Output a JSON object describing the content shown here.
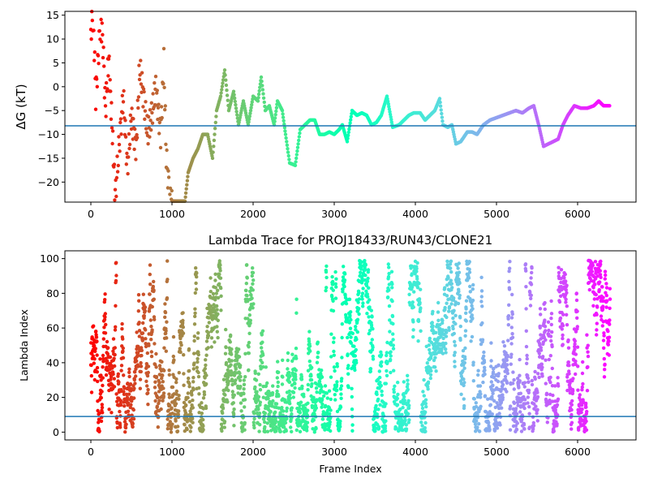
{
  "chart_data": [
    {
      "type": "scatter",
      "title": "",
      "ylabel": "ΔG (kT)",
      "xlabel": "",
      "xlim": [
        -320,
        6720
      ],
      "ylim": [
        -24.2,
        15.8
      ],
      "xticks": [
        0,
        1000,
        2000,
        3000,
        4000,
        5000,
        6000
      ],
      "yticks": [
        -20,
        -15,
        -10,
        -5,
        0,
        5,
        10,
        15
      ],
      "grid": false,
      "colormap": "rainbow (colored by frame index)",
      "hline": {
        "y": -8.2,
        "color": "#1f77b4"
      },
      "trace_points": [
        [
          0,
          12
        ],
        [
          30,
          15
        ],
        [
          60,
          -2
        ],
        [
          90,
          6
        ],
        [
          120,
          14.5
        ],
        [
          150,
          9
        ],
        [
          180,
          -5
        ],
        [
          220,
          6
        ],
        [
          260,
          -8
        ],
        [
          300,
          -23
        ],
        [
          350,
          -12
        ],
        [
          400,
          -2
        ],
        [
          450,
          -17
        ],
        [
          500,
          -6
        ],
        [
          560,
          -13
        ],
        [
          600,
          4
        ],
        [
          650,
          -2
        ],
        [
          700,
          -10
        ],
        [
          760,
          -5
        ],
        [
          800,
          0
        ],
        [
          860,
          -10
        ],
        [
          900,
          5
        ],
        [
          930,
          -15
        ],
        [
          980,
          -24
        ],
        [
          1050,
          -24
        ],
        [
          1100,
          -24
        ],
        [
          1160,
          -24
        ],
        [
          1200,
          -18
        ],
        [
          1260,
          -15
        ],
        [
          1320,
          -13
        ],
        [
          1380,
          -10
        ],
        [
          1440,
          -10
        ],
        [
          1500,
          -15
        ],
        [
          1550,
          -5
        ],
        [
          1600,
          -2
        ],
        [
          1650,
          3.5
        ],
        [
          1700,
          -5
        ],
        [
          1760,
          -1
        ],
        [
          1820,
          -8
        ],
        [
          1880,
          -3
        ],
        [
          1940,
          -8
        ],
        [
          2000,
          -2
        ],
        [
          2060,
          -3
        ],
        [
          2100,
          2
        ],
        [
          2150,
          -5
        ],
        [
          2200,
          -4
        ],
        [
          2260,
          -8
        ],
        [
          2300,
          -3
        ],
        [
          2360,
          -5
        ],
        [
          2400,
          -10
        ],
        [
          2450,
          -16
        ],
        [
          2520,
          -16.5
        ],
        [
          2580,
          -9
        ],
        [
          2640,
          -8
        ],
        [
          2700,
          -7
        ],
        [
          2760,
          -7
        ],
        [
          2820,
          -10
        ],
        [
          2880,
          -10
        ],
        [
          2940,
          -9.5
        ],
        [
          3000,
          -10
        ],
        [
          3060,
          -9
        ],
        [
          3100,
          -8
        ],
        [
          3160,
          -11.5
        ],
        [
          3220,
          -5
        ],
        [
          3280,
          -6
        ],
        [
          3340,
          -5.5
        ],
        [
          3400,
          -6
        ],
        [
          3460,
          -8
        ],
        [
          3520,
          -7.5
        ],
        [
          3580,
          -6
        ],
        [
          3650,
          -2
        ],
        [
          3720,
          -8.5
        ],
        [
          3800,
          -8
        ],
        [
          3860,
          -7
        ],
        [
          3920,
          -6
        ],
        [
          3980,
          -5.5
        ],
        [
          4060,
          -5.5
        ],
        [
          4120,
          -7
        ],
        [
          4180,
          -6
        ],
        [
          4240,
          -5
        ],
        [
          4300,
          -2.5
        ],
        [
          4340,
          -8
        ],
        [
          4400,
          -8.5
        ],
        [
          4450,
          -8
        ],
        [
          4500,
          -12
        ],
        [
          4560,
          -11.5
        ],
        [
          4640,
          -9.5
        ],
        [
          4700,
          -9.5
        ],
        [
          4760,
          -10
        ],
        [
          4840,
          -8
        ],
        [
          4920,
          -7
        ],
        [
          5000,
          -6.5
        ],
        [
          5080,
          -6
        ],
        [
          5160,
          -5.5
        ],
        [
          5240,
          -5
        ],
        [
          5320,
          -5.5
        ],
        [
          5400,
          -4.5
        ],
        [
          5460,
          -4
        ],
        [
          5520,
          -8
        ],
        [
          5580,
          -12.5
        ],
        [
          5640,
          -12
        ],
        [
          5700,
          -11.5
        ],
        [
          5760,
          -11
        ],
        [
          5820,
          -8
        ],
        [
          5880,
          -6
        ],
        [
          5960,
          -4
        ],
        [
          6040,
          -4.5
        ],
        [
          6120,
          -4.5
        ],
        [
          6200,
          -4
        ],
        [
          6260,
          -3
        ],
        [
          6320,
          -4
        ],
        [
          6400,
          -4
        ]
      ]
    },
    {
      "type": "scatter",
      "title": "Lambda Trace for PROJ18433/RUN43/CLONE21",
      "xlabel": "Frame Index",
      "ylabel": "Lambda Index",
      "xlim": [
        -320,
        6720
      ],
      "ylim": [
        -4.5,
        104.5
      ],
      "xticks": [
        0,
        1000,
        2000,
        3000,
        4000,
        5000,
        6000
      ],
      "yticks": [
        0,
        20,
        40,
        60,
        80,
        100
      ],
      "grid": false,
      "colormap": "rainbow (colored by frame index)",
      "hline": {
        "y": 9,
        "color": "#1f77b4"
      },
      "n_frames": 6400,
      "value_range": [
        0,
        99
      ]
    }
  ]
}
